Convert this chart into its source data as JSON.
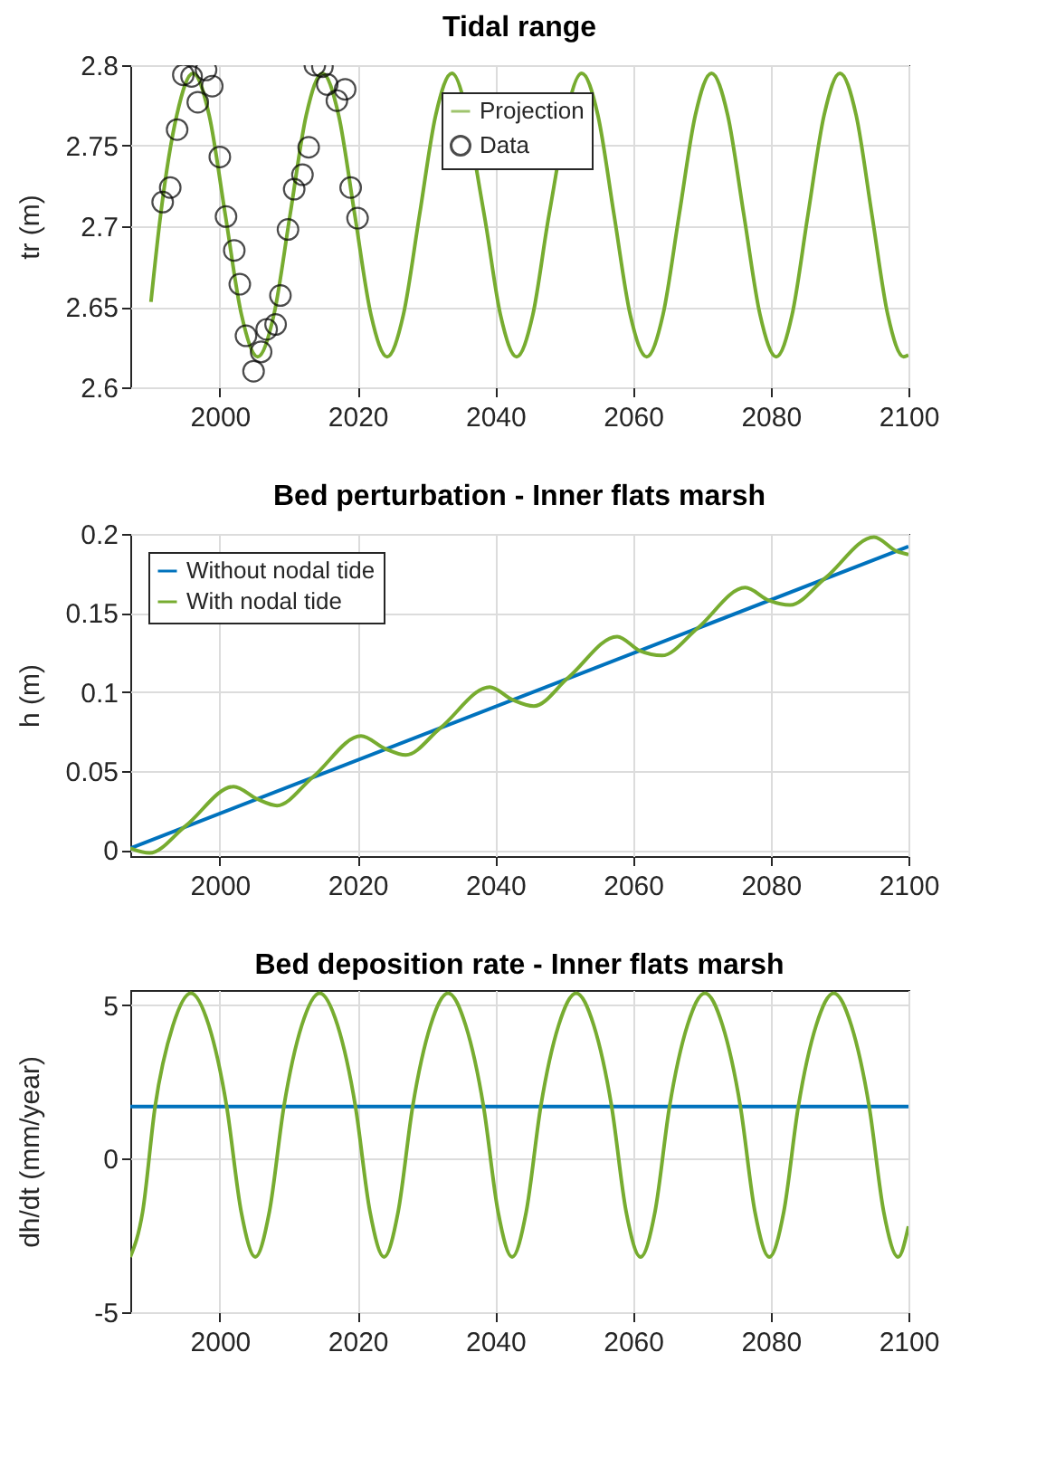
{
  "chart_data": [
    {
      "type": "line",
      "title": "Tidal range",
      "ylabel": "tr (m)",
      "xlim": [
        1987,
        2100
      ],
      "ylim": [
        2.6,
        2.8
      ],
      "xticks": [
        2000,
        2020,
        2040,
        2060,
        2080,
        2100
      ],
      "yticks": [
        2.6,
        2.65,
        2.7,
        2.75,
        2.8
      ],
      "grid": true,
      "legend": "top",
      "series": [
        {
          "name": "Projection",
          "type": "line",
          "color": "#77ac30",
          "x": [
            1990,
            1991.4,
            1993.75,
            1996.1,
            1998.45,
            2000.8,
            2003.15,
            2005.5,
            2007.85,
            2010.2,
            2012.55,
            2014.9,
            2017.25,
            2019.6,
            2021.95,
            2024.3,
            2026.65,
            2029.0,
            2031.35,
            2033.7,
            2038.4,
            2040.75,
            2043.1,
            2045.45,
            2047.8,
            2052.55,
            2054.9,
            2057.25,
            2059.6,
            2062.0,
            2064.35,
            2066.7,
            2069.05,
            2071.4,
            2073.75,
            2076.1,
            2078.45,
            2080.8,
            2083.1,
            2085.4,
            2087.75,
            2090.05,
            2092.4,
            2094.7,
            2097.0,
            2099.3,
            2100
          ],
          "values": [
            2.653,
            2.707,
            2.769,
            2.795,
            2.769,
            2.707,
            2.645,
            2.619,
            2.645,
            2.707,
            2.769,
            2.795,
            2.769,
            2.707,
            2.645,
            2.619,
            2.645,
            2.707,
            2.769,
            2.795,
            2.707,
            2.645,
            2.619,
            2.645,
            2.707,
            2.795,
            2.769,
            2.707,
            2.645,
            2.619,
            2.645,
            2.707,
            2.769,
            2.795,
            2.769,
            2.707,
            2.645,
            2.619,
            2.645,
            2.707,
            2.769,
            2.795,
            2.769,
            2.707,
            2.645,
            2.619,
            2.62
          ]
        },
        {
          "name": "Data",
          "type": "scatter",
          "color": "#000000",
          "marker": "circle",
          "x": [
            1991.7,
            1992.8,
            1993.8,
            1994.7,
            1995.9,
            1996.8,
            1998.0,
            1998.9,
            2000.0,
            2000.9,
            2002.1,
            2002.9,
            2003.8,
            2004.9,
            2006.0,
            2006.8,
            2008.1,
            2008.8,
            2009.9,
            2010.8,
            2012.0,
            2012.9,
            2013.8,
            2014.9,
            2015.6,
            2017.0,
            2018.2,
            2019.0,
            2020.0
          ],
          "values": [
            2.715,
            2.724,
            2.76,
            2.794,
            2.793,
            2.777,
            2.797,
            2.787,
            2.743,
            2.706,
            2.685,
            2.664,
            2.632,
            2.61,
            2.622,
            2.636,
            2.639,
            2.657,
            2.698,
            2.723,
            2.732,
            2.749,
            2.8,
            2.799,
            2.788,
            2.778,
            2.785,
            2.724,
            2.705
          ]
        }
      ]
    },
    {
      "type": "line",
      "title": "Bed perturbation - Inner flats marsh",
      "ylabel": "h (m)",
      "xlim": [
        1987,
        2100
      ],
      "ylim": [
        -0.004,
        0.2
      ],
      "xticks": [
        2000,
        2020,
        2040,
        2060,
        2080,
        2100
      ],
      "yticks": [
        0,
        0.05,
        0.1,
        0.15,
        0.2
      ],
      "grid": true,
      "legend": "top left",
      "series": [
        {
          "name": "Without nodal tide",
          "type": "line",
          "color": "#0072bd",
          "x": [
            1987,
            2100
          ],
          "values": [
            0.001,
            0.192
          ]
        },
        {
          "name": "With nodal tide",
          "type": "line",
          "color": "#77ac30",
          "x": [
            1987,
            1989.8,
            1995,
            2002,
            2005.5,
            2008.3,
            2013.5,
            2020.5,
            2024,
            2027,
            2032,
            2039.2,
            2042.5,
            2045.6,
            2050.6,
            2057.7,
            2061,
            2064.2,
            2069.3,
            2076.3,
            2079.7,
            2082.8,
            2087.9,
            2095,
            2098.3,
            2100
          ],
          "values": [
            0.001,
            -0.002,
            0.015,
            0.04,
            0.032,
            0.028,
            0.046,
            0.072,
            0.064,
            0.06,
            0.077,
            0.103,
            0.095,
            0.091,
            0.109,
            0.135,
            0.126,
            0.123,
            0.14,
            0.166,
            0.158,
            0.155,
            0.172,
            0.198,
            0.189,
            0.187
          ]
        }
      ]
    },
    {
      "type": "line",
      "title": "Bed deposition rate - Inner flats marsh",
      "ylabel": "dh/dt (mm/year)",
      "xlim": [
        1987,
        2100
      ],
      "ylim": [
        -5,
        5.5
      ],
      "xticks": [
        2000,
        2020,
        2040,
        2060,
        2080,
        2100
      ],
      "yticks": [
        -5,
        0,
        5
      ],
      "grid": true,
      "series": [
        {
          "type": "line",
          "color": "#0072bd",
          "x": [
            1987,
            2100
          ],
          "values": [
            1.7,
            1.7
          ]
        },
        {
          "type": "line",
          "color": "#77ac30",
          "x": [
            1987,
            1988.8,
            1990.6,
            1993.2,
            1995.8,
            1998.4,
            2001.0,
            2003.1,
            2005.15,
            2007.2,
            2009.3,
            2011.9,
            2014.5,
            2017.1,
            2019.7,
            2021.8,
            2023.85,
            2025.9,
            2028.0,
            2030.6,
            2033.15,
            2035.7,
            2038.3,
            2040.4,
            2042.45,
            2044.5,
            2046.6,
            2049.2,
            2051.75,
            2054.3,
            2056.9,
            2059.0,
            2061.1,
            2063.2,
            2065.3,
            2067.9,
            2070.45,
            2073.0,
            2075.6,
            2077.7,
            2079.8,
            2081.9,
            2084.0,
            2086.6,
            2089.15,
            2091.7,
            2094.3,
            2096.4,
            2098.5,
            2100
          ],
          "values": [
            -3.2,
            -1.72,
            1.7,
            4.35,
            5.4,
            4.35,
            1.7,
            -1.72,
            -3.2,
            -1.72,
            1.7,
            4.35,
            5.4,
            4.35,
            1.7,
            -1.72,
            -3.2,
            -1.72,
            1.7,
            4.35,
            5.4,
            4.35,
            1.7,
            -1.72,
            -3.2,
            -1.72,
            1.7,
            4.35,
            5.4,
            4.35,
            1.7,
            -1.72,
            -3.2,
            -1.72,
            1.7,
            4.35,
            5.4,
            4.35,
            1.7,
            -1.72,
            -3.2,
            -1.72,
            1.7,
            4.35,
            5.4,
            4.35,
            1.7,
            -1.72,
            -3.2,
            -2.2
          ]
        }
      ]
    }
  ]
}
